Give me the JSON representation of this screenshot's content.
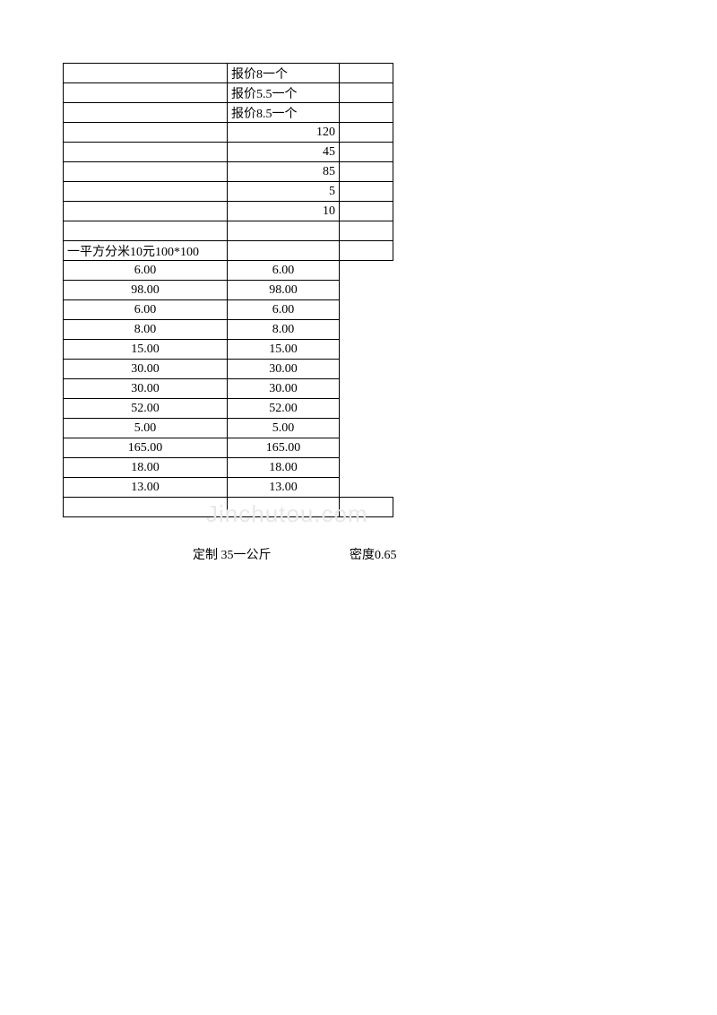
{
  "table": {
    "section1": {
      "rows": [
        {
          "col_a": "",
          "col_b": "报价8一个",
          "col_b_align": "left",
          "col_c": ""
        },
        {
          "col_a": "",
          "col_b": "报价5.5一个",
          "col_b_align": "left",
          "col_c": ""
        },
        {
          "col_a": "",
          "col_b": "报价8.5一个",
          "col_b_align": "left",
          "col_c": ""
        },
        {
          "col_a": "",
          "col_b": "120",
          "col_b_align": "right",
          "col_c": ""
        },
        {
          "col_a": "",
          "col_b": "45",
          "col_b_align": "right",
          "col_c": ""
        },
        {
          "col_a": "",
          "col_b": "85",
          "col_b_align": "right",
          "col_c": ""
        },
        {
          "col_a": "",
          "col_b": "5",
          "col_b_align": "right",
          "col_c": ""
        },
        {
          "col_a": "",
          "col_b": "10",
          "col_b_align": "right",
          "col_c": ""
        },
        {
          "col_a": "",
          "col_b": "",
          "col_b_align": "left",
          "col_c": ""
        }
      ],
      "special_row": {
        "col_a": "一平方分米10元100*100",
        "col_b": "",
        "col_c": ""
      }
    },
    "section2": {
      "rows": [
        {
          "col_a": "6.00",
          "col_b": "6.00"
        },
        {
          "col_a": "98.00",
          "col_b": "98.00"
        },
        {
          "col_a": "6.00",
          "col_b": "6.00"
        },
        {
          "col_a": "8.00",
          "col_b": "8.00"
        },
        {
          "col_a": "15.00",
          "col_b": "15.00"
        },
        {
          "col_a": "30.00",
          "col_b": "30.00"
        },
        {
          "col_a": "30.00",
          "col_b": "30.00"
        },
        {
          "col_a": "52.00",
          "col_b": "52.00"
        },
        {
          "col_a": "5.00",
          "col_b": "5.00"
        },
        {
          "col_a": "165.00",
          "col_b": "165.00"
        },
        {
          "col_a": "18.00",
          "col_b": "18.00"
        },
        {
          "col_a": "13.00",
          "col_b": "13.00"
        }
      ],
      "blank_row": {
        "col_a": "",
        "col_b": "",
        "col_c": ""
      }
    }
  },
  "watermark": "Jinchutou.com",
  "footer": {
    "left": "定制  35一公斤",
    "right": "密度0.65"
  }
}
